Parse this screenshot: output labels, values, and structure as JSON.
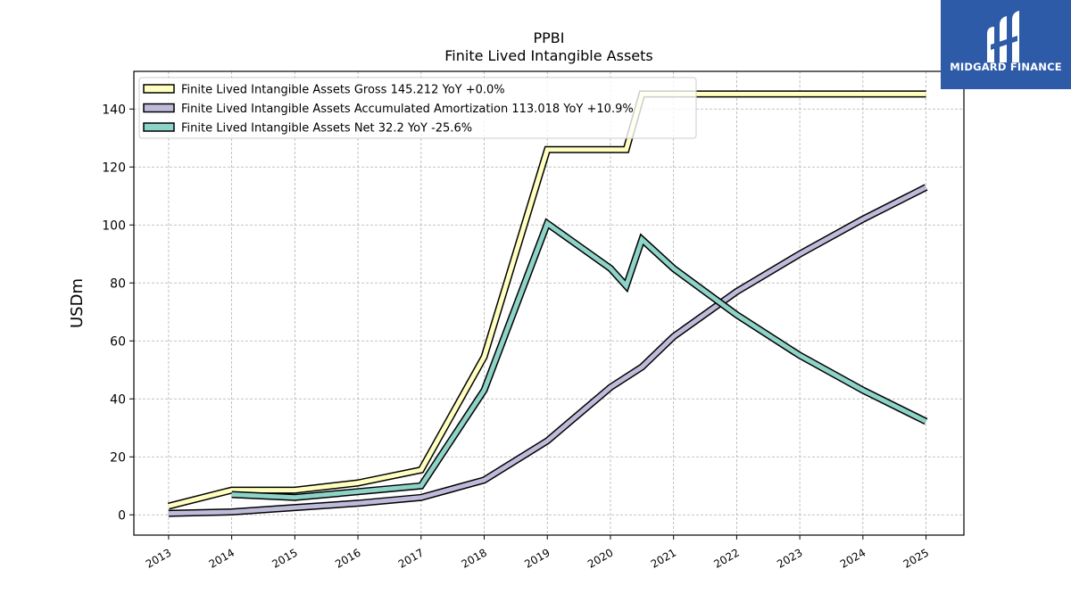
{
  "header": {
    "ticker": "PPBI",
    "subtitle": "Finite Lived Intangible Assets"
  },
  "brand": {
    "name": "MIDGARD FINANCE",
    "color": "#2d5ba8"
  },
  "chart_data": {
    "type": "line",
    "title": "PPBI",
    "subtitle": "Finite Lived Intangible Assets",
    "ylabel": "USDm",
    "xlabel": "",
    "ylim": [
      -7,
      153
    ],
    "xlim": [
      2012.45,
      2025.6
    ],
    "yticks": [
      0,
      20,
      40,
      60,
      80,
      100,
      120,
      140
    ],
    "xticks": [
      "2013",
      "2014",
      "2015",
      "2016",
      "2017",
      "2018",
      "2019",
      "2020",
      "2021",
      "2022",
      "2023",
      "2024",
      "2025"
    ],
    "grid": true,
    "legend_position": "top-left",
    "series": [
      {
        "name": "Finite Lived Intangible Assets Gross  145.212 YoY +0.0%",
        "color": "#ffffbf",
        "x": [
          2013,
          2014,
          2015,
          2016,
          2017,
          2018,
          2019,
          2020,
          2020.25,
          2020.5,
          2021,
          2022,
          2023,
          2024,
          2025
        ],
        "y": [
          3,
          8.5,
          8.5,
          11,
          15.5,
          54.5,
          126,
          126,
          126,
          145.2,
          145.2,
          145.2,
          145.2,
          145.2,
          145.2
        ]
      },
      {
        "name": "Finite Lived Intangible Assets Accumulated Amortization  113.018 YoY +10.9%",
        "color": "#bebada",
        "x": [
          2013,
          2014,
          2015,
          2016,
          2017,
          2018,
          2019,
          2020,
          2020.5,
          2021,
          2022,
          2023,
          2024,
          2025
        ],
        "y": [
          0.5,
          1,
          2.5,
          4,
          6,
          12,
          25.5,
          44,
          51,
          61.5,
          77,
          90,
          102,
          113
        ]
      },
      {
        "name": "Finite Lived Intangible Assets Net  32.2 YoY -25.6%",
        "color": "#8dd3c7",
        "x": [
          2014,
          2015,
          2016,
          2017,
          2018,
          2019,
          2020,
          2020.25,
          2020.5,
          2021,
          2022,
          2023,
          2024,
          2025
        ],
        "y": [
          7,
          6,
          8,
          10,
          43,
          100.5,
          85,
          79,
          95,
          85,
          69,
          55,
          43,
          32.2
        ]
      }
    ]
  }
}
